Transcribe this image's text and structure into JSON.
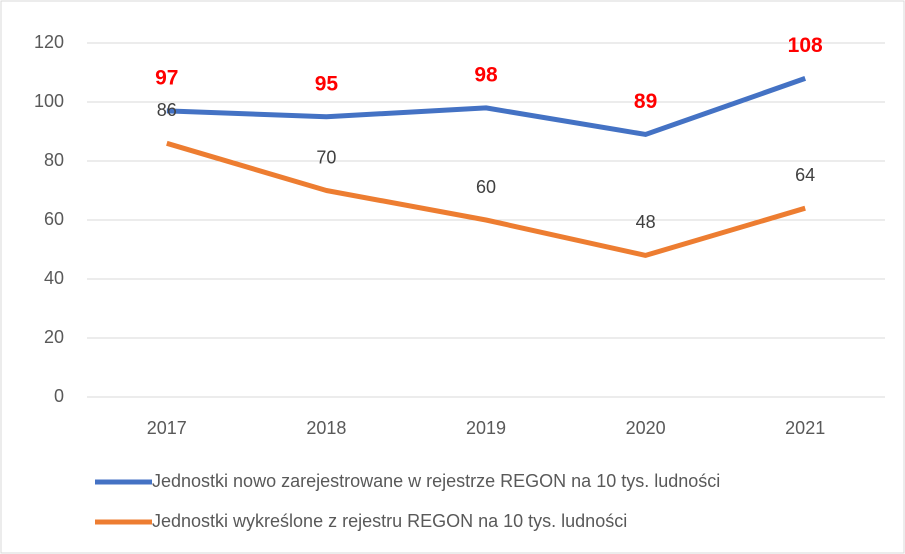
{
  "chart_data": {
    "type": "line",
    "categories": [
      "2017",
      "2018",
      "2019",
      "2020",
      "2021"
    ],
    "series": [
      {
        "name": "Jednostki nowo zarejestrowane w rejestrze REGON na 10 tys. ludności",
        "color": "#4472c4",
        "label_color": "#ff0000",
        "values": [
          97,
          95,
          98,
          89,
          108
        ]
      },
      {
        "name": "Jednostki wykreślone z rejestru REGON na 10 tys. ludności",
        "color": "#ed7d31",
        "label_color": "#404040",
        "values": [
          86,
          70,
          60,
          48,
          64
        ]
      }
    ],
    "ylim": [
      0,
      120
    ],
    "yticks": [
      0,
      20,
      40,
      60,
      80,
      100,
      120
    ],
    "grid": true,
    "legend": "bottom"
  }
}
